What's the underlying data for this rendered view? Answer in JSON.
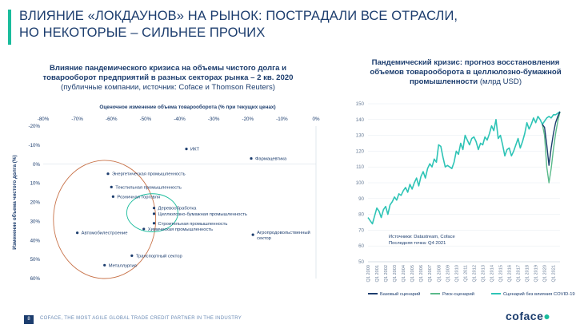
{
  "page": {
    "title_line1": "ВЛИЯНИЕ «ЛОКДАУНОВ» НА РЫНОК: ПОСТРАДАЛИ ВСЕ ОТРАСЛИ,",
    "title_line2": "НО НЕКОТОРЫЕ – СИЛЬНЕЕ ПРОЧИХ",
    "accent_color": "#1abc9c",
    "brand_color": "#1c3d6e"
  },
  "left_panel": {
    "title_line1": "Влияние пандемического кризиса на объемы чистого долга и",
    "title_line2": "товарооборот предприятий в разных секторах рынка – 2 кв. 2020",
    "subtitle": "(публичные компании, источник: Coface и Thomson Reuters)"
  },
  "right_panel": {
    "title_line1": "Пандемический кризис: прогноз восстановления",
    "title_line2": "объемов товарооборота в целлюлозно-бумажной",
    "title_line3_bold": "промышленности",
    "title_line3_rest": " (млрд USD)"
  },
  "footer": {
    "page_number": "8",
    "tagline": "COFACE, THE MOST AGILE GLOBAL TRADE CREDIT PARTNER IN THE INDUSTRY",
    "logo": "coface"
  },
  "chart_data": [
    {
      "type": "scatter",
      "xlabel": "Оценочное изменение объема товарооборота (% при текущих ценах)",
      "ylabel": "Изменение объема чистого долга (%)",
      "xlim": [
        -80,
        0
      ],
      "ylim": [
        -20,
        60
      ],
      "x_ticks": [
        -80,
        -70,
        -60,
        -50,
        -40,
        -30,
        -20,
        -10,
        0
      ],
      "x_tick_labels": [
        "-80%",
        "-70%",
        "-60%",
        "-50%",
        "-40%",
        "-30%",
        "-20%",
        "-10%",
        "0%"
      ],
      "y_ticks": [
        -20,
        -10,
        0,
        10,
        20,
        30,
        40,
        50,
        60
      ],
      "y_tick_labels": [
        "-20%",
        "-10%",
        "0%",
        "10%",
        "20%",
        "30%",
        "40%",
        "50%",
        "60%"
      ],
      "y_inverted": true,
      "points": [
        {
          "label": "ИКТ",
          "x": -38,
          "y": -8,
          "label_side": "right"
        },
        {
          "label": "Фармацевтика",
          "x": -19,
          "y": -3,
          "label_side": "right"
        },
        {
          "label": "Энергетическая промышленность",
          "x": -61,
          "y": 5,
          "label_side": "right"
        },
        {
          "label": "Текстильная промышленность",
          "x": -60,
          "y": 12,
          "label_side": "right"
        },
        {
          "label": "Розничная торговля",
          "x": -59.5,
          "y": 17,
          "label_side": "right"
        },
        {
          "label": "Деревообработка",
          "x": -47.5,
          "y": 23,
          "label_side": "right"
        },
        {
          "label": "Целлюлозно-бумажная промышленность",
          "x": -47.5,
          "y": 26,
          "label_side": "right"
        },
        {
          "label": "Строительная промышленность",
          "x": -47.5,
          "y": 31,
          "label_side": "right"
        },
        {
          "label": "Химическая промышленность",
          "x": -50.5,
          "y": 34,
          "label_side": "right"
        },
        {
          "label": "Автомобилестроение",
          "x": -70,
          "y": 36,
          "label_side": "right"
        },
        {
          "label": "Агропродовольственный сектор",
          "x": -18.5,
          "y": 37,
          "label_side": "right"
        },
        {
          "label": "Транспортный сектор",
          "x": -54,
          "y": 48,
          "label_side": "right"
        },
        {
          "label": "Металлургия",
          "x": -62,
          "y": 53,
          "label_side": "right"
        }
      ],
      "highlights": [
        {
          "shape": "ellipse",
          "color": "#c8734a",
          "cx": -62,
          "cy": 29,
          "rx": 15,
          "ry": 31
        },
        {
          "shape": "ellipse",
          "color": "#1abc9c",
          "cx": -48,
          "cy": 25.5,
          "rx": 7.5,
          "ry": 10
        }
      ]
    },
    {
      "type": "line",
      "ylim": [
        50,
        150
      ],
      "y_ticks": [
        50,
        60,
        70,
        80,
        90,
        100,
        110,
        120,
        130,
        140,
        150
      ],
      "x_ticks": [
        "Q1 2000",
        "Q1 2001",
        "Q1 2002",
        "Q1 2003",
        "Q1 2004",
        "Q1 2005",
        "Q1 2006",
        "Q1 2007",
        "Q1 2008",
        "Q1 2009",
        "Q1 2010",
        "Q1 2011",
        "Q1 2012",
        "Q1 2013",
        "Q1 2014",
        "Q1 2015",
        "Q1 2016",
        "Q1 2017",
        "Q1 2018",
        "Q1 2019",
        "Q1 2020",
        "Q1 2021"
      ],
      "annotation_line1": "Источники: Datastream, Coface",
      "annotation_line2": "Последняя точка: Q4 2021",
      "legend": [
        {
          "name": "Базовый сценарий",
          "color": "#1c3d6e"
        },
        {
          "name": "Риск-сценарий",
          "color": "#5aba8a"
        },
        {
          "name": "Сценарий без влияния COVID-19",
          "color": "#2ec4b6"
        }
      ],
      "series": [
        {
          "name": "Сценарий без влияния COVID-19",
          "color": "#2ec4b6",
          "x": [
            2000.0,
            2000.25,
            2000.5,
            2000.75,
            2001.0,
            2001.25,
            2001.5,
            2001.75,
            2002.0,
            2002.25,
            2002.5,
            2002.75,
            2003.0,
            2003.25,
            2003.5,
            2003.75,
            2004.0,
            2004.25,
            2004.5,
            2004.75,
            2005.0,
            2005.25,
            2005.5,
            2005.75,
            2006.0,
            2006.25,
            2006.5,
            2006.75,
            2007.0,
            2007.25,
            2007.5,
            2007.75,
            2008.0,
            2008.25,
            2008.5,
            2008.75,
            2009.0,
            2009.25,
            2009.5,
            2009.75,
            2010.0,
            2010.25,
            2010.5,
            2010.75,
            2011.0,
            2011.25,
            2011.5,
            2011.75,
            2012.0,
            2012.25,
            2012.5,
            2012.75,
            2013.0,
            2013.25,
            2013.5,
            2013.75,
            2014.0,
            2014.25,
            2014.5,
            2014.75,
            2015.0,
            2015.25,
            2015.5,
            2015.75,
            2016.0,
            2016.25,
            2016.5,
            2016.75,
            2017.0,
            2017.25,
            2017.5,
            2017.75,
            2018.0,
            2018.25,
            2018.5,
            2018.75,
            2019.0,
            2019.25,
            2019.5,
            2019.75,
            2020.0,
            2020.25,
            2020.5,
            2020.75,
            2021.0,
            2021.25,
            2021.5,
            2021.75
          ],
          "values": [
            78,
            76,
            74,
            79,
            84,
            82,
            78,
            83,
            85,
            80,
            86,
            88,
            91,
            89,
            93,
            92,
            95,
            97,
            94,
            99,
            96,
            100,
            103,
            98,
            104,
            107,
            103,
            109,
            112,
            110,
            115,
            113,
            124,
            123,
            116,
            110,
            111,
            110,
            109,
            113,
            120,
            118,
            125,
            121,
            130,
            127,
            124,
            128,
            129,
            126,
            121,
            125,
            124,
            129,
            127,
            131,
            136,
            133,
            140,
            128,
            130,
            124,
            117,
            121,
            122,
            117,
            120,
            124,
            128,
            122,
            126,
            131,
            138,
            134,
            137,
            141,
            138,
            142,
            140,
            137,
            139,
            141,
            142,
            141,
            143,
            143,
            144,
            145
          ]
        },
        {
          "name": "Базовый сценарий",
          "color": "#1c3d6e",
          "x": [
            2019.75,
            2020.0,
            2020.25,
            2020.5,
            2020.75,
            2021.0,
            2021.25,
            2021.5,
            2021.75
          ],
          "values": [
            137,
            135,
            124,
            111,
            122,
            131,
            138,
            142,
            145
          ]
        },
        {
          "name": "Риск-сценарий",
          "color": "#5aba8a",
          "x": [
            2019.75,
            2020.0,
            2020.25,
            2020.5,
            2020.75,
            2021.0,
            2021.25,
            2021.5,
            2021.75
          ],
          "values": [
            137,
            130,
            110,
            100,
            109,
            121,
            131,
            139,
            145
          ]
        }
      ]
    }
  ]
}
